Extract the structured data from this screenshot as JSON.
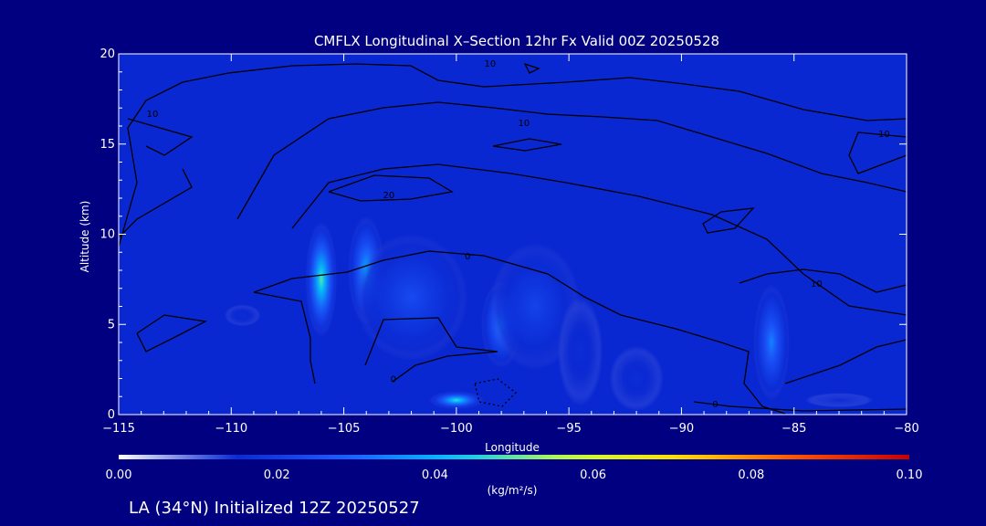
{
  "colors": {
    "background": "#000080",
    "plot_fill": "#0a28d2",
    "text": "#ffffff",
    "contour": "#000000"
  },
  "chart_data": {
    "type": "heatmap",
    "title": "CMFLX Longitudinal X–Section 12hr  Fx Valid 00Z 20250528",
    "xlabel": "Longitude",
    "ylabel": "Altitude (km)",
    "xlim": [
      -115,
      -80
    ],
    "ylim": [
      0,
      20
    ],
    "x_ticks": [
      -115,
      -110,
      -105,
      -100,
      -95,
      -90,
      -85,
      -80
    ],
    "x_tick_labels": [
      "−115",
      "−110",
      "−105",
      "−100",
      "−95",
      "−90",
      "−85",
      "−80"
    ],
    "y_ticks": [
      0,
      5,
      10,
      15,
      20
    ],
    "y_tick_labels": [
      "0",
      "5",
      "10",
      "15",
      "20"
    ],
    "colorbar": {
      "min": 0.0,
      "max": 0.1,
      "tick_values": [
        0.0,
        0.02,
        0.04,
        0.06,
        0.08,
        0.1
      ],
      "tick_labels": [
        "0.00",
        "0.02",
        "0.04",
        "0.06",
        "0.08",
        "0.10"
      ],
      "units": "(kg/m²/s)",
      "colormap": [
        "#ffffff",
        "#0a28d2",
        "#1e5aff",
        "#00c8ff",
        "#c8ff3c",
        "#ffdc00",
        "#ff5000",
        "#c80000"
      ]
    },
    "field": [
      {
        "lon": -106.0,
        "alt": 7.5,
        "value": 0.05,
        "rlon": 0.7,
        "ralt": 3.2
      },
      {
        "lon": -104.0,
        "alt": 8.0,
        "value": 0.04,
        "rlon": 0.8,
        "ralt": 3.0
      },
      {
        "lon": -102.0,
        "alt": 6.5,
        "value": 0.024,
        "rlon": 2.5,
        "ralt": 3.5
      },
      {
        "lon": -98.0,
        "alt": 5.0,
        "value": 0.036,
        "rlon": 0.9,
        "ralt": 2.4
      },
      {
        "lon": -100.0,
        "alt": 0.8,
        "value": 0.048,
        "rlon": 1.2,
        "ralt": 0.5
      },
      {
        "lon": -96.5,
        "alt": 6.0,
        "value": 0.022,
        "rlon": 2.0,
        "ralt": 3.5
      },
      {
        "lon": -94.5,
        "alt": 3.5,
        "value": 0.016,
        "rlon": 1.0,
        "ralt": 3.0
      },
      {
        "lon": -92.0,
        "alt": 2.0,
        "value": 0.016,
        "rlon": 1.2,
        "ralt": 1.8
      },
      {
        "lon": -86.0,
        "alt": 4.0,
        "value": 0.034,
        "rlon": 0.8,
        "ralt": 3.2
      },
      {
        "lon": -109.5,
        "alt": 5.5,
        "value": 0.016,
        "rlon": 0.8,
        "ralt": 0.6
      },
      {
        "lon": -83.0,
        "alt": 0.8,
        "value": 0.014,
        "rlon": 1.5,
        "ralt": 0.4
      }
    ],
    "contour_labels": [
      {
        "text": "10",
        "lon": -113.5,
        "alt": 16.5
      },
      {
        "text": "10",
        "lon": -97.0,
        "alt": 16.0
      },
      {
        "text": "10",
        "lon": -98.5,
        "alt": 19.3
      },
      {
        "text": "20",
        "lon": -103.0,
        "alt": 12.0
      },
      {
        "text": "10",
        "lon": -84.0,
        "alt": 7.1
      },
      {
        "text": "0",
        "lon": -99.5,
        "alt": 8.6
      },
      {
        "text": "0",
        "lon": -102.8,
        "alt": 1.8
      },
      {
        "text": "0",
        "lon": -88.5,
        "alt": 0.4
      },
      {
        "text": "10",
        "lon": -81.0,
        "alt": 15.4
      }
    ]
  },
  "footer": {
    "location_text": "LA (34°N) Initialized 12Z 20250527"
  }
}
